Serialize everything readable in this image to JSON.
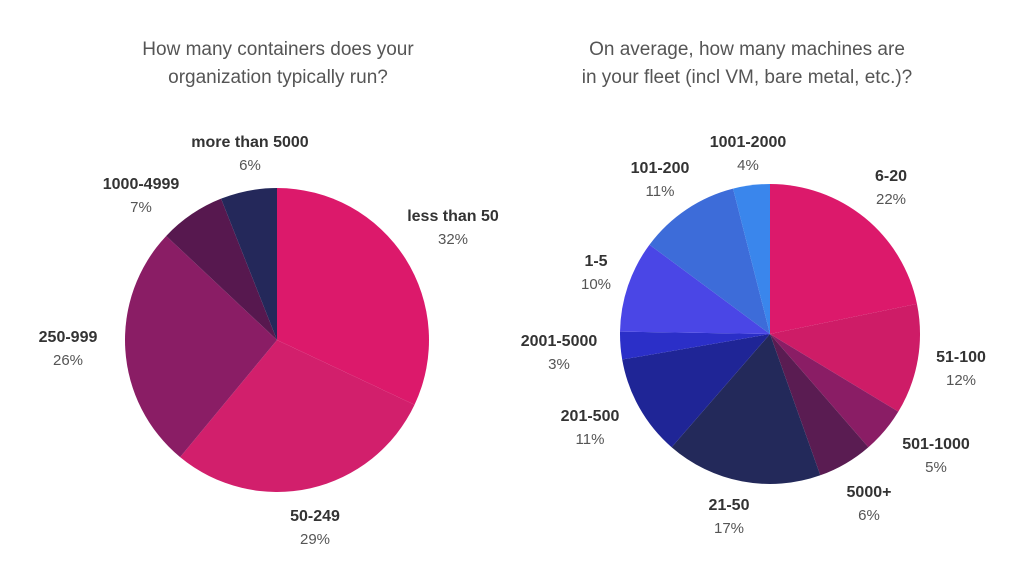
{
  "chart_data": [
    {
      "type": "pie",
      "title_lines": [
        "How many containers does your",
        "organization typically run?"
      ],
      "slices": [
        {
          "label": "less than 50",
          "value": 32,
          "value_label": "32%",
          "color": "#dc196b"
        },
        {
          "label": "50-249",
          "value": 29,
          "value_label": "29%",
          "color": "#d21f6c"
        },
        {
          "label": "250-999",
          "value": 26,
          "value_label": "26%",
          "color": "#8a1d65"
        },
        {
          "label": "1000-4999",
          "value": 7,
          "value_label": "7%",
          "color": "#57184f"
        },
        {
          "label": "more than 5000",
          "value": 6,
          "value_label": "6%",
          "color": "#24285a"
        }
      ]
    },
    {
      "type": "pie",
      "title_lines": [
        "On average, how many machines are",
        "in your fleet (incl VM, bare metal, etc.)?"
      ],
      "slices": [
        {
          "label": "6-20",
          "value": 22,
          "value_label": "22%",
          "color": "#dc196b"
        },
        {
          "label": "51-100",
          "value": 12,
          "value_label": "12%",
          "color": "#ce1c67"
        },
        {
          "label": "501-1000",
          "value": 5,
          "value_label": "5%",
          "color": "#8a1d65"
        },
        {
          "label": "5000+",
          "value": 6,
          "value_label": "6%",
          "color": "#5a1c52"
        },
        {
          "label": "21-50",
          "value": 17,
          "value_label": "17%",
          "color": "#23295a"
        },
        {
          "label": "201-500",
          "value": 11,
          "value_label": "11%",
          "color": "#1f2596"
        },
        {
          "label": "2001-5000",
          "value": 3,
          "value_label": "3%",
          "color": "#2b2fc8"
        },
        {
          "label": "1-5",
          "value": 10,
          "value_label": "10%",
          "color": "#4a46e6"
        },
        {
          "label": "101-200",
          "value": 11,
          "value_label": "11%",
          "color": "#3d6cd9"
        },
        {
          "label": "1001-2000",
          "value": 4,
          "value_label": "4%",
          "color": "#3a86ec"
        }
      ]
    }
  ]
}
